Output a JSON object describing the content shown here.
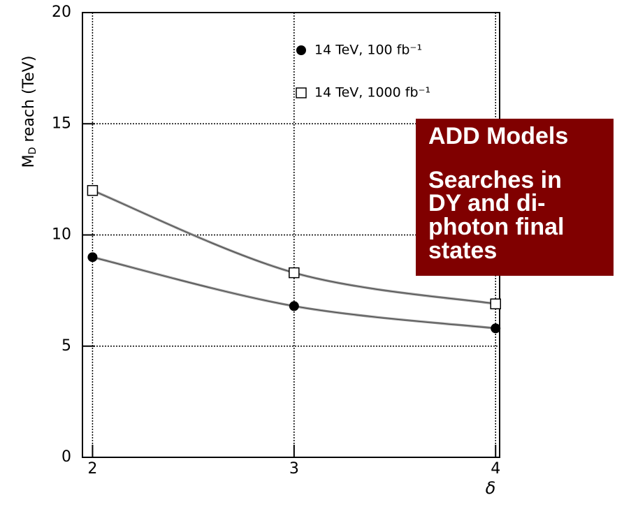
{
  "chart_data": {
    "type": "line",
    "ylabel": [
      "M",
      "D",
      " reach (TeV)"
    ],
    "xlabel": "δ",
    "x": [
      2,
      3,
      4
    ],
    "series": [
      {
        "name": "14 TeV, 100 fb⁻¹",
        "color": "#000000",
        "marker": "filled-circle",
        "values": [
          9.0,
          6.8,
          5.8
        ]
      },
      {
        "name": "14 TeV, 1000 fb⁻¹",
        "color": "#000000",
        "marker": "open-square",
        "values": [
          12.0,
          8.3,
          6.9
        ]
      }
    ],
    "xlim": [
      1.95,
      4.02
    ],
    "xticks": [
      2,
      3,
      4
    ],
    "ylim": [
      0,
      20
    ],
    "yticks": [
      0,
      5,
      10,
      15,
      20
    ],
    "grid": true,
    "annotation": {
      "lines": [
        "ADD Models",
        "Searches in",
        "DY and di-",
        "photon final",
        "states"
      ],
      "color": "#800000"
    }
  }
}
